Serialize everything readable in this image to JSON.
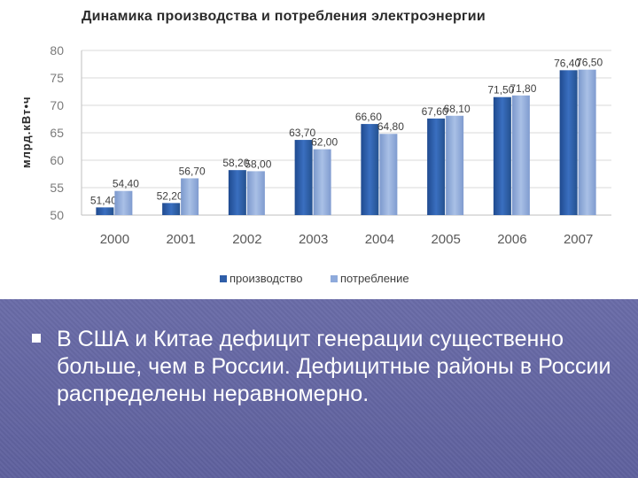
{
  "chart_data": {
    "type": "bar",
    "title": "Динамика производства и потребления электроэнергии",
    "ylabel": "млрд.кВт•ч",
    "xlabel": "",
    "categories": [
      "2000",
      "2001",
      "2002",
      "2003",
      "2004",
      "2005",
      "2006",
      "2007"
    ],
    "ylim": [
      50,
      80
    ],
    "yticks": [
      "50",
      "55",
      "60",
      "65",
      "70",
      "75",
      "80"
    ],
    "grid": true,
    "legend_position": "bottom",
    "series": [
      {
        "name": "производство",
        "color": "#2f5ea8",
        "values": [
          51.4,
          52.2,
          58.2,
          63.7,
          66.6,
          67.6,
          71.5,
          76.4
        ],
        "labels": [
          "51,40",
          "52,20",
          "58,20",
          "63,70",
          "66,60",
          "67,60",
          "71,50",
          "76,40"
        ]
      },
      {
        "name": "потребление",
        "color": "#8eaadb",
        "values": [
          54.4,
          56.7,
          58.0,
          62.0,
          64.8,
          68.1,
          71.8,
          76.5
        ],
        "labels": [
          "54,40",
          "56,70",
          "58,00",
          "62,00",
          "64,80",
          "68,10",
          "71,80",
          "76,50"
        ]
      }
    ]
  },
  "slide": {
    "bullet_icon": "square-bullet-icon",
    "bullet_text": "В США и Китае дефицит генерации существенно больше, чем в России. Дефицитные районы в России распределены неравномерно."
  }
}
